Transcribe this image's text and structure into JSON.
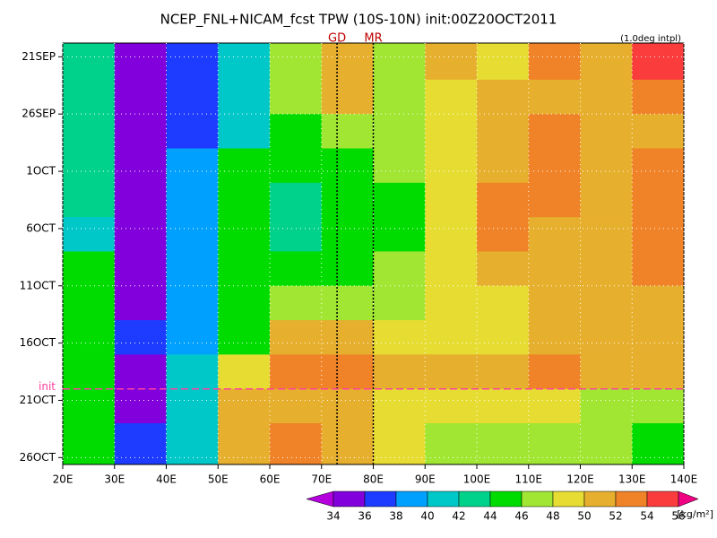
{
  "chart_data": {
    "type": "heatmap",
    "title": "NCEP_FNL+NICAM_fcst TPW (10S-10N) init:00Z20OCT2011",
    "subtitle": "(1.0deg intpl)",
    "xlim": [
      20,
      140
    ],
    "ylim": [
      -1.2,
      35.6
    ],
    "y_reversed": true,
    "grid": true,
    "xticks": [
      {
        "value": 20,
        "label": "20E"
      },
      {
        "value": 30,
        "label": "30E"
      },
      {
        "value": 40,
        "label": "40E"
      },
      {
        "value": 50,
        "label": "50E"
      },
      {
        "value": 60,
        "label": "60E"
      },
      {
        "value": 70,
        "label": "70E"
      },
      {
        "value": 80,
        "label": "80E"
      },
      {
        "value": 90,
        "label": "90E"
      },
      {
        "value": 100,
        "label": "100E"
      },
      {
        "value": 110,
        "label": "110E"
      },
      {
        "value": 120,
        "label": "120E"
      },
      {
        "value": 130,
        "label": "130E"
      },
      {
        "value": 140,
        "label": "140E"
      }
    ],
    "yticks": [
      {
        "value": 0,
        "label": "21SEP"
      },
      {
        "value": 5,
        "label": "26SEP"
      },
      {
        "value": 10,
        "label": "1OCT"
      },
      {
        "value": 15,
        "label": "6OCT"
      },
      {
        "value": 20,
        "label": "11OCT"
      },
      {
        "value": 25,
        "label": "16OCT"
      },
      {
        "value": 30,
        "label": "21OCT"
      },
      {
        "value": 35,
        "label": "26OCT"
      }
    ],
    "x_bins": [
      20,
      30,
      40,
      50,
      60,
      70,
      80,
      90,
      100,
      110,
      120,
      130,
      140
    ],
    "y_bins": [
      -1.2,
      2,
      5,
      8,
      11,
      14,
      17,
      20,
      23,
      26,
      29,
      32,
      35.6
    ],
    "z": [
      [
        42,
        35,
        37,
        40,
        46,
        50,
        46,
        50,
        48,
        52,
        50,
        54
      ],
      [
        42,
        34,
        36,
        40,
        46,
        50,
        46,
        48,
        50,
        50,
        50,
        52
      ],
      [
        42,
        34,
        36,
        40,
        44,
        46,
        46,
        48,
        50,
        52,
        50,
        50
      ],
      [
        42,
        35,
        38,
        44,
        44,
        44,
        46,
        48,
        50,
        52,
        50,
        52
      ],
      [
        42,
        35,
        38,
        44,
        42,
        44,
        44,
        48,
        52,
        52,
        50,
        52
      ],
      [
        40,
        35,
        38,
        44,
        42,
        44,
        44,
        48,
        52,
        50,
        50,
        52
      ],
      [
        44,
        35,
        38,
        44,
        44,
        44,
        46,
        48,
        50,
        50,
        50,
        52
      ],
      [
        44,
        35,
        38,
        44,
        46,
        46,
        46,
        48,
        48,
        50,
        50,
        50
      ],
      [
        44,
        36,
        38,
        44,
        50,
        50,
        48,
        48,
        48,
        50,
        50,
        50
      ],
      [
        44,
        35,
        40,
        48,
        52,
        52,
        50,
        50,
        50,
        52,
        50,
        50
      ],
      [
        44,
        35,
        40,
        50,
        50,
        50,
        48,
        48,
        48,
        48,
        46,
        46
      ],
      [
        44,
        36,
        40,
        50,
        52,
        50,
        48,
        46,
        46,
        46,
        46,
        44
      ]
    ],
    "levels": [
      34,
      36,
      38,
      40,
      42,
      44,
      46,
      48,
      50,
      52,
      54,
      56
    ],
    "colors": [
      "#b400dc",
      "#8200dc",
      "#1e3cff",
      "#00a0ff",
      "#00c8c8",
      "#00d28c",
      "#00dc00",
      "#a0e632",
      "#e6dc32",
      "#e6af2d",
      "#f08228",
      "#fa3c3c",
      "#f00082"
    ],
    "colorbar_unit": "[kg/m²]",
    "markers": [
      {
        "label": "GD",
        "x": 73
      },
      {
        "label": "MR",
        "x": 80
      }
    ],
    "init": {
      "label": "init",
      "y": 29
    }
  }
}
